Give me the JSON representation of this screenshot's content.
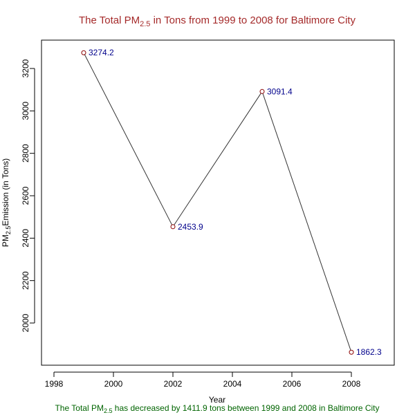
{
  "chart_data": {
    "type": "line",
    "title": {
      "prefix": "The Total  PM",
      "subscript": "2.5",
      "suffix": " in Tons from 1999 to 2008 for  Baltimore City"
    },
    "subtitle": {
      "prefix": "The Total  PM",
      "subscript": "2.5",
      "suffix": " has decreased by  1411.9 tons between 1999 and 2008 in Baltimore City"
    },
    "xlabel": "Year",
    "ylabel": {
      "prefix": "PM",
      "subscript": "2.5",
      "suffix": "Emission (in Tons)"
    },
    "x": [
      1999,
      2002,
      2005,
      2008
    ],
    "values": [
      3274.2,
      2453.9,
      3091.4,
      1862.3
    ],
    "point_labels": [
      "3274.2",
      "2453.9",
      "3091.4",
      "1862.3"
    ],
    "xlim": [
      1998,
      2008
    ],
    "ylim": [
      2000,
      3200
    ],
    "xticks": [
      "1998",
      "2000",
      "2002",
      "2004",
      "2006",
      "2008"
    ],
    "yticks": [
      "2000",
      "2200",
      "2400",
      "2600",
      "2800",
      "3000",
      "3200"
    ],
    "grid": false,
    "colors": {
      "title": "#a52a2a",
      "subtitle": "#006400",
      "point_label": "#00008b",
      "point": "#8b0000",
      "line": "#333333",
      "axis": "#000000"
    }
  }
}
